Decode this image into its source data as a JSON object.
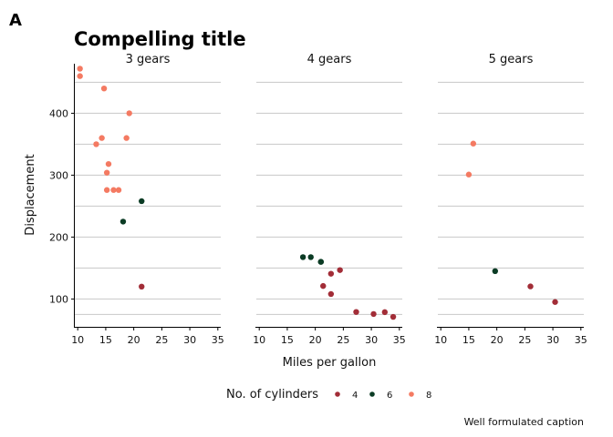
{
  "tag": "A",
  "chart_data": {
    "type": "scatter",
    "title": "Compelling title",
    "xlabel": "Miles per gallon",
    "ylabel": "Displacement",
    "caption": "Well formulated caption",
    "xlim": [
      9.5,
      35
    ],
    "ylim": [
      55,
      480
    ],
    "xticks": [
      10,
      15,
      20,
      25,
      30,
      35
    ],
    "yticks": [
      100,
      200,
      300,
      400
    ],
    "grid": "horizontal",
    "legend": {
      "title": "No. of cylinders",
      "position": "bottom",
      "entries": [
        {
          "label": "4",
          "color": "#a22d37"
        },
        {
          "label": "6",
          "color": "#0b3b24"
        },
        {
          "label": "8",
          "color": "#f47a62"
        }
      ]
    },
    "facets": [
      {
        "label": "3 gears",
        "points": [
          {
            "x": 21.4,
            "y": 120,
            "cyl": "4"
          },
          {
            "x": 21.4,
            "y": 258,
            "cyl": "6"
          },
          {
            "x": 18.1,
            "y": 225,
            "cyl": "6"
          },
          {
            "x": 18.7,
            "y": 360,
            "cyl": "8"
          },
          {
            "x": 14.3,
            "y": 360,
            "cyl": "8"
          },
          {
            "x": 16.4,
            "y": 276,
            "cyl": "8"
          },
          {
            "x": 17.3,
            "y": 276,
            "cyl": "8"
          },
          {
            "x": 15.2,
            "y": 276,
            "cyl": "8"
          },
          {
            "x": 10.4,
            "y": 472,
            "cyl": "8"
          },
          {
            "x": 10.4,
            "y": 460,
            "cyl": "8"
          },
          {
            "x": 14.7,
            "y": 440,
            "cyl": "8"
          },
          {
            "x": 15.5,
            "y": 318,
            "cyl": "8"
          },
          {
            "x": 15.2,
            "y": 304,
            "cyl": "8"
          },
          {
            "x": 13.3,
            "y": 350,
            "cyl": "8"
          },
          {
            "x": 19.2,
            "y": 400,
            "cyl": "8"
          }
        ]
      },
      {
        "label": "4 gears",
        "points": [
          {
            "x": 21.0,
            "y": 160,
            "cyl": "6"
          },
          {
            "x": 21.0,
            "y": 160,
            "cyl": "6"
          },
          {
            "x": 19.2,
            "y": 167.6,
            "cyl": "6"
          },
          {
            "x": 17.8,
            "y": 167.6,
            "cyl": "6"
          },
          {
            "x": 22.8,
            "y": 108,
            "cyl": "4"
          },
          {
            "x": 24.4,
            "y": 146.7,
            "cyl": "4"
          },
          {
            "x": 22.8,
            "y": 140.8,
            "cyl": "4"
          },
          {
            "x": 32.4,
            "y": 78.7,
            "cyl": "4"
          },
          {
            "x": 30.4,
            "y": 75.7,
            "cyl": "4"
          },
          {
            "x": 33.9,
            "y": 71.1,
            "cyl": "4"
          },
          {
            "x": 27.3,
            "y": 79,
            "cyl": "4"
          },
          {
            "x": 21.4,
            "y": 121,
            "cyl": "4"
          }
        ]
      },
      {
        "label": "5 gears",
        "points": [
          {
            "x": 26.0,
            "y": 120.3,
            "cyl": "4"
          },
          {
            "x": 30.4,
            "y": 95.1,
            "cyl": "4"
          },
          {
            "x": 15.8,
            "y": 351,
            "cyl": "8"
          },
          {
            "x": 19.7,
            "y": 145,
            "cyl": "6"
          },
          {
            "x": 15.0,
            "y": 301,
            "cyl": "8"
          }
        ]
      }
    ]
  }
}
